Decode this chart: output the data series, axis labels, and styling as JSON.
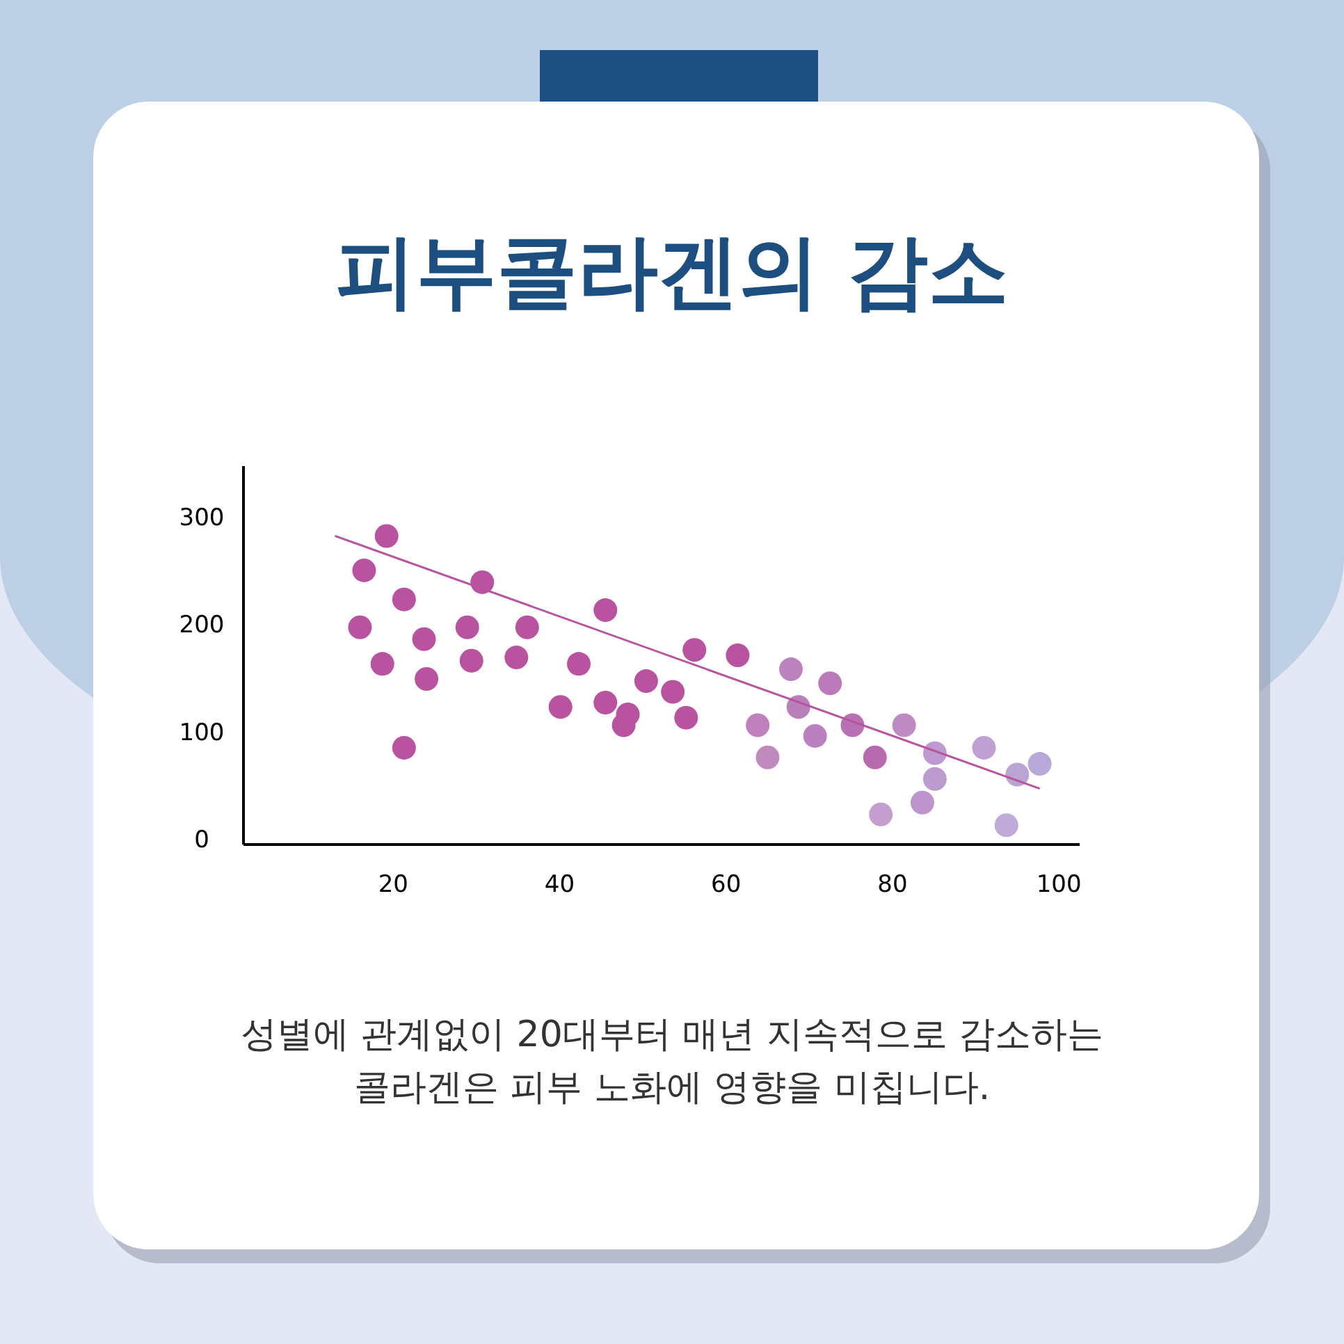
{
  "chart_data": {
    "type": "scatter",
    "title": "피부콜라겐의 감소",
    "annotations": [
      "성별에 관계없이 20대부터 매년 지속적으로 감소하는\n콜라겐은 피부 노화에 영향을 미칩니다."
    ],
    "xlim": [
      2,
      102.5
    ],
    "ylim": [
      -5,
      347
    ],
    "xticks": [
      20,
      40,
      60,
      80,
      100
    ],
    "yticks": [
      0,
      100,
      200,
      300
    ],
    "grid": false,
    "series": [
      {
        "marker": "circle",
        "x": [
          16.0,
          16.5,
          18.7,
          19.2,
          21.3,
          21.3,
          23.7,
          24.0,
          28.9,
          29.4,
          30.7,
          34.8,
          36.1,
          40.1,
          42.3,
          45.5,
          45.5,
          47.7,
          48.2,
          50.4,
          53.6,
          55.2,
          56.2,
          61.4,
          63.8,
          65.0,
          67.8,
          68.7,
          70.7,
          72.5,
          75.2,
          77.9,
          78.6,
          81.4,
          83.6,
          85.1,
          85.1,
          91.0,
          93.7,
          95.0,
          97.7
        ],
        "values": [
          197,
          250,
          163,
          282,
          223,
          85,
          186,
          149,
          197,
          166,
          239,
          169,
          197,
          123,
          163,
          213,
          127,
          106,
          116,
          147,
          137,
          113,
          176,
          171,
          106,
          76,
          158,
          123,
          96,
          145,
          106,
          76,
          23,
          106,
          34,
          80,
          56,
          85,
          13,
          60,
          70
        ],
        "colors": [
          "#b9529f",
          "#b9529f",
          "#b9529f",
          "#b9529f",
          "#b9529f",
          "#b9529f",
          "#b9529f",
          "#b9529f",
          "#b9529f",
          "#b9529f",
          "#b9529f",
          "#b9529f",
          "#b9529f",
          "#b9529f",
          "#b9529f",
          "#b9529f",
          "#b9529f",
          "#b9529f",
          "#b9529f",
          "#b9529f",
          "#b9529f",
          "#b9529f",
          "#b9529f",
          "#b9529f",
          "#c07fbd",
          "#c08abf",
          "#bc84bf",
          "#b97fbb",
          "#bb80bf",
          "#bb7bbb",
          "#b872b4",
          "#b86aae",
          "#c39ecf",
          "#bd8ac2",
          "#bd94cb",
          "#bd9bd0",
          "#bd9bd0",
          "#bfa0d2",
          "#bfaad9",
          "#b9a4d4",
          "#b8a8da"
        ]
      },
      {
        "type": "line",
        "color": "#b9529f",
        "x": [
          13.0,
          97.7
        ],
        "values": [
          282,
          47
        ]
      }
    ]
  }
}
